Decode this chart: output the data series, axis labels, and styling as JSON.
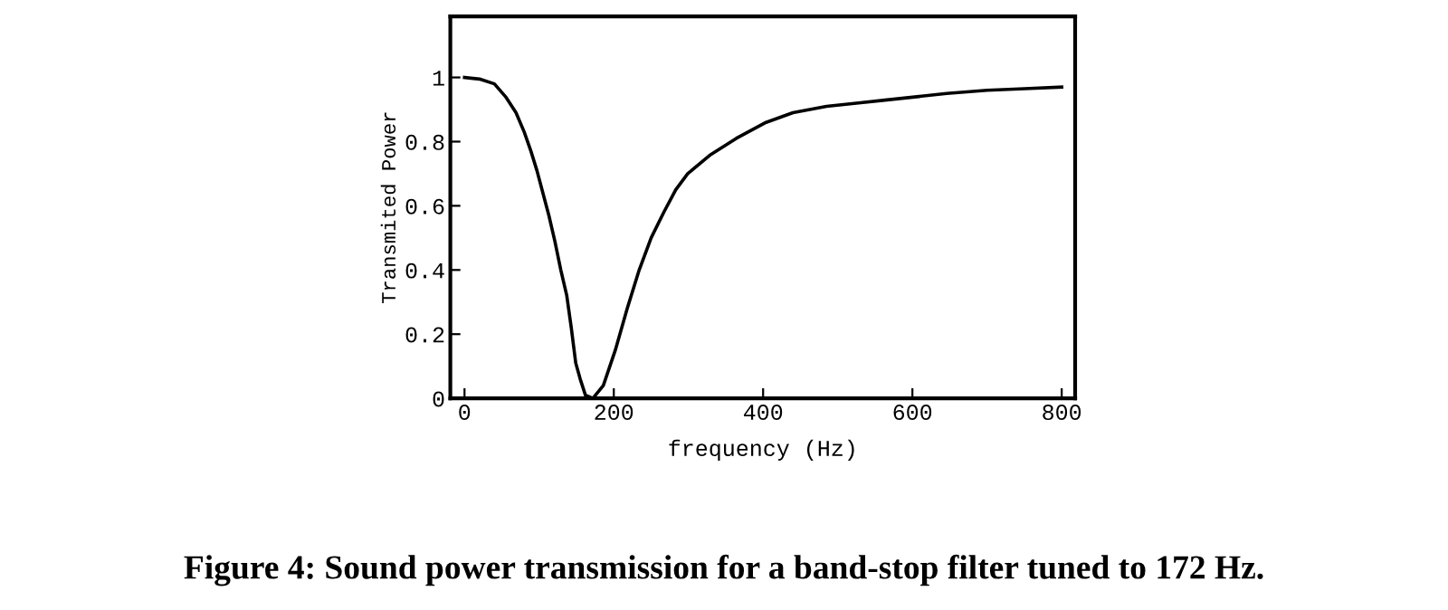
{
  "chart_data": {
    "type": "line",
    "xlabel": "frequency (Hz)",
    "ylabel": "Transmited Power",
    "annotations": [
      "Figure 4: Sound power transmission for a band-stop filter tuned to 172 Hz."
    ],
    "series": [
      {
        "color": "#000000",
        "x": [
          0,
          20,
          40,
          55,
          69,
          80,
          89,
          97,
          105,
          113,
          121,
          129,
          137,
          143,
          149,
          155,
          162,
          172,
          186,
          202,
          218,
          234,
          250,
          267,
          283,
          299,
          330,
          364,
          404,
          440,
          485,
          525,
          566,
          606,
          646,
          700,
          750,
          800
        ],
        "values": [
          1.0,
          0.995,
          0.98,
          0.94,
          0.89,
          0.83,
          0.77,
          0.71,
          0.64,
          0.57,
          0.49,
          0.4,
          0.32,
          0.22,
          0.11,
          0.06,
          0.01,
          0.0,
          0.04,
          0.15,
          0.28,
          0.4,
          0.5,
          0.58,
          0.65,
          0.7,
          0.76,
          0.81,
          0.86,
          0.89,
          0.91,
          0.92,
          0.93,
          0.94,
          0.95,
          0.96,
          0.965,
          0.97
        ]
      }
    ],
    "xlim": [
      -19,
      818
    ],
    "ylim": [
      0,
      1.19
    ],
    "xticks": [
      0,
      200,
      400,
      600,
      800
    ],
    "yticks": [
      0,
      0.2,
      0.4,
      0.6,
      0.8,
      1
    ],
    "grid": false,
    "legend": false,
    "marker": "none",
    "line_style": "solid"
  }
}
